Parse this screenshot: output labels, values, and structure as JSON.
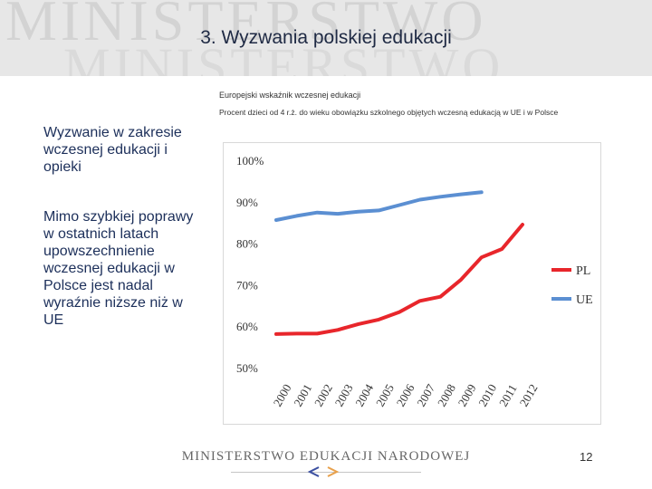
{
  "header": {
    "title": "3. Wyzwania polskiej edukacji",
    "watermark_line1": "MINISTERSTWO",
    "watermark_line2": "MINISTERSTWO"
  },
  "left_text": {
    "heading": "Wyzwanie w zakresie wczesnej edukacji i opieki",
    "body": "Mimo szybkiej poprawy w ostatnich latach upowszechnienie wczesnej edukacji w Polsce jest nadal wyraźnie niższe niż w UE"
  },
  "chart_data": {
    "type": "line",
    "title": "Europejski wskaźnik wczesnej edukacji",
    "subtitle": "Procent dzieci od 4 r.ż. do wieku obowiązku szkolnego objętych wczesną edukacją w UE i w Polsce",
    "x": [
      "2000",
      "2001",
      "2002",
      "2003",
      "2004",
      "2005",
      "2006",
      "2007",
      "2008",
      "2009",
      "2010",
      "2011",
      "2012"
    ],
    "y_ticks": [
      "50%",
      "60%",
      "70%",
      "80%",
      "90%",
      "100%"
    ],
    "ylim": [
      50,
      100
    ],
    "xlabel": "",
    "ylabel": "",
    "grid": false,
    "legend_position": "right",
    "series": [
      {
        "name": "PL",
        "color": "#e8262b",
        "values": [
          58.1,
          58.2,
          58.2,
          59.1,
          60.5,
          61.6,
          63.4,
          66.1,
          67.1,
          71.2,
          76.6,
          78.6,
          84.5
        ]
      },
      {
        "name": "UE",
        "color": "#5b8fd2",
        "values": [
          85.6,
          86.6,
          87.4,
          87.1,
          87.6,
          87.9,
          89.2,
          90.5,
          91.2,
          91.8,
          92.3,
          null,
          null
        ]
      }
    ]
  },
  "footer": {
    "ministry": "MINISTERSTWO EDUKACJI NARODOWEJ",
    "page_number": "12"
  },
  "colors": {
    "title": "#1f2a44",
    "left_text": "#1c2f5a",
    "header_bg": "#e7e7e7"
  }
}
